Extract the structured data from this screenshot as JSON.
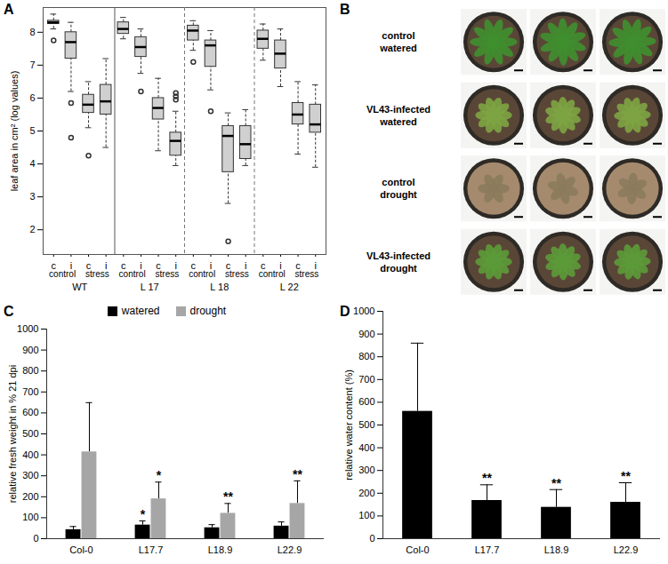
{
  "chart_data": [
    {
      "panel": "A",
      "type": "box",
      "ylabel": "leaf area in cm² (log values)",
      "ylim": [
        1.25,
        8.75
      ],
      "yticks": [
        2,
        3,
        4,
        5,
        6,
        7,
        8
      ],
      "groups": [
        "WT",
        "L 17",
        "L 18",
        "L 22"
      ],
      "conditions": [
        "control",
        "stress"
      ],
      "box_labels": [
        "c",
        "i"
      ],
      "color": "#d0d0d0",
      "boxes": [
        {
          "min": 8.1,
          "q1": 8.25,
          "median": 8.3,
          "q3": 8.35,
          "max": 8.55,
          "outliers": [
            7.75
          ]
        },
        {
          "min": 6.2,
          "q1": 7.2,
          "median": 7.7,
          "q3": 8.0,
          "max": 8.3,
          "outliers": [
            5.85,
            4.8
          ]
        },
        {
          "min": 5.1,
          "q1": 5.55,
          "median": 5.8,
          "q3": 6.1,
          "max": 6.5,
          "outliers": [
            4.25
          ]
        },
        {
          "min": 4.5,
          "q1": 5.5,
          "median": 5.9,
          "q3": 6.4,
          "max": 7.2,
          "outliers": []
        },
        {
          "min": 7.8,
          "q1": 7.95,
          "median": 8.1,
          "q3": 8.3,
          "max": 8.45,
          "outliers": []
        },
        {
          "min": 6.75,
          "q1": 7.25,
          "median": 7.55,
          "q3": 7.85,
          "max": 8.1,
          "outliers": [
            6.2
          ]
        },
        {
          "min": 4.4,
          "q1": 5.35,
          "median": 5.7,
          "q3": 6.0,
          "max": 6.6,
          "outliers": []
        },
        {
          "min": 3.95,
          "q1": 4.25,
          "median": 4.7,
          "q3": 4.95,
          "max": 5.6,
          "outliers": [
            6.15,
            6.05,
            5.95
          ]
        },
        {
          "min": 7.45,
          "q1": 7.75,
          "median": 8.05,
          "q3": 8.2,
          "max": 8.35,
          "outliers": [
            7.1
          ]
        },
        {
          "min": 6.25,
          "q1": 6.95,
          "median": 7.6,
          "q3": 7.75,
          "max": 8.05,
          "outliers": [
            5.6
          ]
        },
        {
          "min": 2.8,
          "q1": 3.75,
          "median": 4.85,
          "q3": 5.15,
          "max": 5.55,
          "outliers": [
            1.65
          ]
        },
        {
          "min": 3.95,
          "q1": 4.15,
          "median": 4.6,
          "q3": 5.15,
          "max": 5.65,
          "outliers": []
        },
        {
          "min": 7.15,
          "q1": 7.5,
          "median": 7.8,
          "q3": 8.05,
          "max": 8.25,
          "outliers": []
        },
        {
          "min": 6.35,
          "q1": 6.9,
          "median": 7.35,
          "q3": 7.75,
          "max": 8.1,
          "outliers": []
        },
        {
          "min": 4.3,
          "q1": 5.2,
          "median": 5.5,
          "q3": 5.85,
          "max": 6.5,
          "outliers": []
        },
        {
          "min": 3.9,
          "q1": 4.95,
          "median": 5.2,
          "q3": 5.8,
          "max": 6.4,
          "outliers": []
        }
      ]
    },
    {
      "panel": "B",
      "type": "image_grid",
      "columns": 3,
      "row_labels": [
        [
          "control",
          "watered"
        ],
        [
          "VL43-infected",
          "watered"
        ],
        [
          "control",
          "drought"
        ],
        [
          "VL43-infected",
          "drought"
        ]
      ]
    },
    {
      "panel": "C",
      "type": "bar",
      "ylabel": "relative fresh weight in % 21 dpi",
      "categories": [
        "Col-0",
        "L17.7",
        "L18.9",
        "L22.9"
      ],
      "series": [
        {
          "name": "watered",
          "color": "#000000",
          "values": [
            43,
            65,
            52,
            60
          ],
          "errors": [
            15,
            20,
            15,
            20
          ],
          "annotations": [
            null,
            "*",
            null,
            null
          ]
        },
        {
          "name": "drought",
          "color": "#a6a6a6",
          "values": [
            414,
            190,
            121,
            168
          ],
          "errors": [
            235,
            80,
            47,
            108
          ],
          "annotations": [
            null,
            "*",
            "**",
            "**"
          ]
        }
      ],
      "ylim": [
        0,
        1000
      ],
      "yticks": [
        0,
        100,
        200,
        300,
        400,
        500,
        600,
        700,
        800,
        900,
        1000
      ],
      "legend": "top"
    },
    {
      "panel": "D",
      "type": "bar",
      "ylabel": "relative water content (%)",
      "categories": [
        "Col-0",
        "L17.7",
        "L18.9",
        "L22.9"
      ],
      "series": [
        {
          "name": null,
          "color": "#000000",
          "values": [
            560,
            168,
            138,
            160
          ],
          "errors": [
            300,
            69,
            78,
            86
          ],
          "annotations": [
            null,
            "**",
            "**",
            "**"
          ]
        }
      ],
      "ylim": [
        0,
        1000
      ],
      "yticks": [
        0,
        100,
        200,
        300,
        400,
        500,
        600,
        700,
        800,
        900,
        1000
      ]
    }
  ]
}
